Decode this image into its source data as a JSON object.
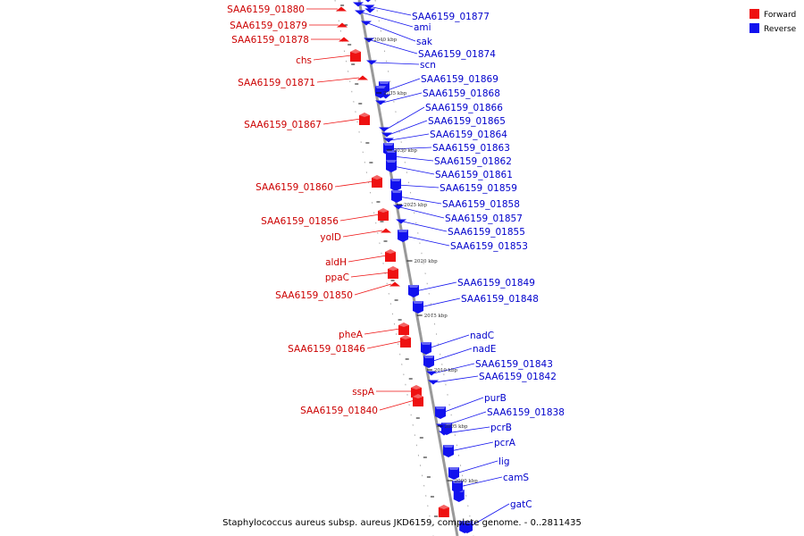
{
  "caption": "Staphylococcus aureus subsp. aureus JKD6159, complete genome. - 0..2811435",
  "legend": [
    {
      "label": "Forward",
      "color": "#ee1111"
    },
    {
      "label": "Reverse",
      "color": "#1111ee"
    }
  ],
  "colors": {
    "forward": "#ee1111",
    "reverse": "#1111ee",
    "backbone": "#999999"
  },
  "ruler_marks": [
    "2040 kbp",
    "2035 kbp",
    "2030 kbp",
    "2025 kbp",
    "2020 kbp",
    "2015 kbp",
    "2010 kbp",
    "2005 kbp",
    "2000 kbp"
  ],
  "forward_genes": [
    "SAA6159_01880",
    "SAA6159_01879",
    "SAA6159_01878",
    "chs",
    "SAA6159_01871",
    "SAA6159_01867",
    "SAA6159_01860",
    "SAA6159_01856",
    "yolD",
    "aldH",
    "ppaC",
    "SAA6159_01850",
    "pheA",
    "SAA6159_01846",
    "sspA",
    "SAA6159_01840"
  ],
  "reverse_genes": [
    "SAA6159_01877",
    "ami",
    "sak",
    "SAA6159_01874",
    "scn",
    "SAA6159_01869",
    "SAA6159_01868",
    "SAA6159_01866",
    "SAA6159_01865",
    "SAA6159_01864",
    "SAA6159_01863",
    "SAA6159_01862",
    "SAA6159_01861",
    "SAA6159_01859",
    "SAA6159_01858",
    "SAA6159_01857",
    "SAA6159_01855",
    "SAA6159_01853",
    "SAA6159_01849",
    "SAA6159_01848",
    "nadC",
    "nadE",
    "SAA6159_01843",
    "SAA6159_01842",
    "purB",
    "SAA6159_01838",
    "pcrB",
    "pcrA",
    "lig",
    "camS",
    "gatC"
  ]
}
